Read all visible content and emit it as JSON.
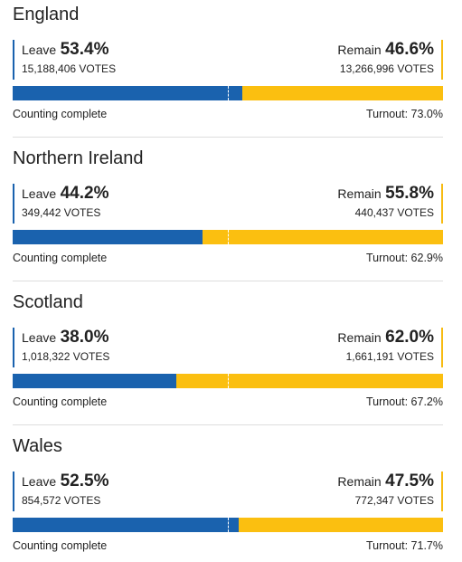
{
  "regions": [
    {
      "name": "England",
      "leave": {
        "label": "Leave",
        "percent": {
          "value": 53.4,
          "label": "53.4%"
        },
        "votes": "15,188,406 VOTES"
      },
      "remain": {
        "label": "Remain",
        "percent": {
          "value": 46.6,
          "label": "46.6%"
        },
        "votes": "13,266,996 VOTES"
      },
      "status": "Counting complete",
      "turnout": "Turnout: 73.0%"
    },
    {
      "name": "Northern Ireland",
      "leave": {
        "label": "Leave",
        "percent": {
          "value": 44.2,
          "label": "44.2%"
        },
        "votes": "349,442 VOTES"
      },
      "remain": {
        "label": "Remain",
        "percent": {
          "value": 55.8,
          "label": "55.8%"
        },
        "votes": "440,437 VOTES"
      },
      "status": "Counting complete",
      "turnout": "Turnout: 62.9%"
    },
    {
      "name": "Scotland",
      "leave": {
        "label": "Leave",
        "percent": {
          "value": 38.0,
          "label": "38.0%"
        },
        "votes": "1,018,322 VOTES"
      },
      "remain": {
        "label": "Remain",
        "percent": {
          "value": 62.0,
          "label": "62.0%"
        },
        "votes": "1,661,191 VOTES"
      },
      "status": "Counting complete",
      "turnout": "Turnout: 67.2%"
    },
    {
      "name": "Wales",
      "leave": {
        "label": "Leave",
        "percent": {
          "value": 52.5,
          "label": "52.5%"
        },
        "votes": "854,572 VOTES"
      },
      "remain": {
        "label": "Remain",
        "percent": {
          "value": 47.5,
          "label": "47.5%"
        },
        "votes": "772,347 VOTES"
      },
      "status": "Counting complete",
      "turnout": "Turnout: 71.7%"
    }
  ]
}
